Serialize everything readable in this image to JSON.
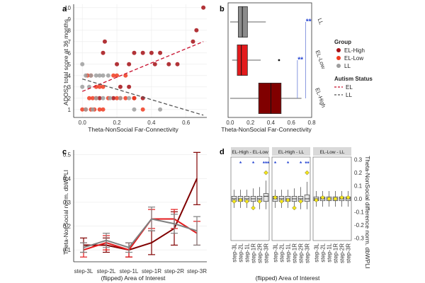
{
  "panels": {
    "a": {
      "label": "a",
      "chart_data": {
        "type": "scatter",
        "xlabel": "Theta-NonSocial Far-Connectivity",
        "ylabel": "ADOS2 total score at 36 months",
        "xlim": [
          -0.05,
          0.72
        ],
        "ylim": [
          0.3,
          10.3
        ],
        "xticks": [
          0.0,
          0.2,
          0.4,
          0.6
        ],
        "xtick_labels": [
          "0.0",
          "0.2",
          "0.4",
          "0.6"
        ],
        "yticks": [
          1,
          2,
          3,
          4,
          5,
          6,
          7,
          8,
          9,
          10
        ],
        "ytick_labels": [
          "1",
          "2",
          "3",
          "4",
          "5",
          "6",
          "7",
          "8",
          "9",
          "10"
        ],
        "series": [
          {
            "name": "EL-High",
            "color": "#a50f15",
            "points": [
              [
                0.7,
                10
              ],
              [
                0.66,
                8
              ],
              [
                0.64,
                7
              ],
              [
                0.45,
                6
              ],
              [
                0.4,
                6
              ],
              [
                0.35,
                6
              ],
              [
                0.3,
                6
              ],
              [
                0.55,
                5
              ],
              [
                0.5,
                5
              ],
              [
                0.42,
                5
              ],
              [
                0.13,
                7
              ],
              [
                0.12,
                6
              ],
              [
                0.2,
                5
              ],
              [
                0.27,
                5
              ],
              [
                0.22,
                3
              ],
              [
                0.27,
                3
              ],
              [
                0.18,
                2
              ],
              [
                0.35,
                2
              ],
              [
                0.3,
                2
              ],
              [
                0.1,
                2
              ]
            ]
          },
          {
            "name": "EL-Low",
            "color": "#f03b20",
            "points": [
              [
                0.03,
                4
              ],
              [
                0.05,
                4
              ],
              [
                0.08,
                3
              ],
              [
                0.1,
                3
              ],
              [
                0.12,
                3
              ],
              [
                0.18,
                4
              ],
              [
                0.2,
                4
              ],
              [
                0.25,
                4
              ],
              [
                0.15,
                2
              ],
              [
                0.2,
                2
              ],
              [
                0.22,
                2
              ],
              [
                0.25,
                2
              ],
              [
                0.3,
                2
              ],
              [
                0.0,
                1
              ],
              [
                0.02,
                1
              ],
              [
                0.05,
                1
              ],
              [
                0.07,
                1
              ],
              [
                0.1,
                1
              ],
              [
                0.12,
                1
              ],
              [
                0.35,
                1
              ],
              [
                0.04,
                2
              ],
              [
                0.06,
                2
              ],
              [
                0.08,
                2
              ]
            ]
          },
          {
            "name": "LL",
            "color": "#9e9e9e",
            "points": [
              [
                0.0,
                5
              ],
              [
                0.02,
                4
              ],
              [
                0.05,
                4
              ],
              [
                0.08,
                4
              ],
              [
                0.1,
                4
              ],
              [
                0.12,
                4
              ],
              [
                0.15,
                4
              ],
              [
                0.0,
                3
              ],
              [
                0.04,
                3
              ],
              [
                0.08,
                2
              ],
              [
                0.12,
                2
              ],
              [
                0.16,
                2
              ],
              [
                0.22,
                2
              ],
              [
                0.27,
                2
              ],
              [
                0.3,
                1
              ],
              [
                0.45,
                1
              ],
              [
                0.02,
                1
              ],
              [
                0.06,
                1
              ]
            ]
          }
        ],
        "trend_lines": [
          {
            "name": "EL",
            "color": "#c8102e",
            "x": [
              0.0,
              0.7
            ],
            "y": [
              2.6,
              7.0
            ]
          },
          {
            "name": "LL",
            "color": "#555555",
            "x": [
              0.0,
              0.7
            ],
            "y": [
              3.7,
              0.5
            ]
          }
        ]
      }
    },
    "b": {
      "label": "b",
      "chart_data": {
        "type": "box",
        "orientation": "horizontal",
        "xlabel": "Theta-NonSocial Far-Connectivity",
        "xlim": [
          -0.02,
          0.8
        ],
        "xticks": [
          0.0,
          0.2,
          0.4,
          0.6,
          0.8
        ],
        "xtick_labels": [
          "0.0",
          "0.2",
          "0.4",
          "0.6",
          "0.8"
        ],
        "groups": [
          {
            "name": "LL",
            "color": "#8c8c8c",
            "min": 0.0,
            "q1": 0.08,
            "median": 0.12,
            "q3": 0.17,
            "max": 0.35
          },
          {
            "name": "EL-Low",
            "color": "#e31a1c",
            "min": 0.02,
            "q1": 0.07,
            "median": 0.11,
            "q3": 0.17,
            "max": 0.3,
            "outliers": [
              0.48
            ]
          },
          {
            "name": "EL-High",
            "color": "#800000",
            "min": 0.0,
            "q1": 0.28,
            "median": 0.4,
            "q3": 0.5,
            "max": 0.7
          }
        ],
        "facet_labels": [
          "LL",
          "EL-Low",
          "EL-High"
        ],
        "significance": [
          {
            "between": [
              "LL",
              "EL-High"
            ],
            "label": "**"
          },
          {
            "between": [
              "EL-Low",
              "EL-High"
            ],
            "label": "**"
          }
        ]
      },
      "legend": {
        "group_title": "Group",
        "group_items": [
          {
            "name": "EL-High",
            "color": "#a50f15"
          },
          {
            "name": "EL-Low",
            "color": "#f03b20"
          },
          {
            "name": "LL",
            "color": "#9e9e9e"
          }
        ],
        "status_title": "Autism Status",
        "status_items": [
          {
            "name": "EL",
            "color": "#c8102e"
          },
          {
            "name": "LL",
            "color": "#555555"
          }
        ]
      }
    },
    "c": {
      "label": "c",
      "chart_data": {
        "type": "line",
        "xlabel": "(flipped) Area of Interest",
        "ylabel": "Theta-NonSocial norm. dbWPLI",
        "categories": [
          "step-3L",
          "step-2L",
          "step-1L",
          "step-1R",
          "step-2R",
          "step-3R"
        ],
        "ylim": [
          0.05,
          0.52
        ],
        "yticks": [
          0.1,
          0.2,
          0.3,
          0.4,
          0.5
        ],
        "ytick_labels": [
          "0.1",
          "0.2",
          "0.3",
          "0.4",
          "0.5"
        ],
        "series": [
          {
            "name": "EL-High",
            "color": "#800000",
            "values": [
              0.12,
              0.12,
              0.1,
              0.13,
              0.19,
              0.4
            ],
            "err": [
              0.03,
              0.03,
              0.03,
              0.05,
              0.07,
              0.11
            ]
          },
          {
            "name": "EL-Low",
            "color": "#e31a1c",
            "values": [
              0.1,
              0.13,
              0.1,
              0.23,
              0.23,
              0.17
            ],
            "err": [
              0.03,
              0.03,
              0.03,
              0.04,
              0.04,
              0.05
            ]
          },
          {
            "name": "LL",
            "color": "#808080",
            "values": [
              0.11,
              0.14,
              0.11,
              0.23,
              0.21,
              0.18
            ],
            "err": [
              0.02,
              0.03,
              0.02,
              0.05,
              0.04,
              0.06
            ]
          }
        ]
      }
    },
    "d": {
      "label": "d",
      "chart_data": {
        "type": "box",
        "orientation": "vertical",
        "xlabel": "(flipped) Area of Interest",
        "ylabel": "Theta-NonSocial difference norm. dbWPLI",
        "ylim": [
          -0.32,
          0.32
        ],
        "yticks": [
          -0.3,
          -0.2,
          -0.1,
          0.0,
          0.1,
          0.2,
          0.3
        ],
        "ytick_labels": [
          "-0.3",
          "-0.2",
          "-0.1",
          "0.0",
          "0.1",
          "0.2",
          "0.3"
        ],
        "categories": [
          "step-3L",
          "step-2L",
          "step-1L",
          "step-1R",
          "step-2R",
          "step-3R"
        ],
        "facets": [
          {
            "title": "EL-High - EL-Low",
            "medians": [
              0.0,
              0.0,
              0.0,
              0.0,
              0.0,
              0.02
            ],
            "q1": [
              -0.02,
              -0.02,
              -0.02,
              -0.02,
              -0.02,
              -0.02
            ],
            "q3": [
              0.02,
              0.02,
              0.02,
              0.02,
              0.02,
              0.04
            ],
            "min": [
              -0.07,
              -0.07,
              -0.07,
              -0.08,
              -0.08,
              -0.08
            ],
            "max": [
              0.07,
              0.07,
              0.07,
              0.08,
              0.09,
              0.14
            ],
            "means": [
              -0.02,
              -0.01,
              -0.02,
              -0.07,
              -0.02,
              0.2
            ],
            "stars": [
              "",
              "*",
              "",
              "*",
              "",
              "***"
            ]
          },
          {
            "title": "EL-High - LL",
            "medians": [
              0.0,
              0.0,
              0.0,
              0.0,
              0.0,
              0.0
            ],
            "q1": [
              -0.02,
              -0.02,
              -0.02,
              -0.02,
              -0.02,
              -0.02
            ],
            "q3": [
              0.02,
              0.02,
              0.02,
              0.02,
              0.02,
              0.03
            ],
            "min": [
              -0.07,
              -0.07,
              -0.07,
              -0.08,
              -0.08,
              -0.08
            ],
            "max": [
              0.07,
              0.07,
              0.07,
              0.08,
              0.09,
              0.13
            ],
            "means": [
              0.01,
              -0.02,
              -0.01,
              -0.07,
              -0.02,
              0.2
            ],
            "stars": [
              "*",
              "",
              "*",
              "",
              "*",
              "**"
            ]
          },
          {
            "title": "EL-Low - LL",
            "medians": [
              0.0,
              0.0,
              0.0,
              0.0,
              0.0,
              0.0
            ],
            "q1": [
              -0.015,
              -0.015,
              -0.015,
              -0.015,
              -0.015,
              -0.015
            ],
            "q3": [
              0.015,
              0.015,
              0.015,
              0.015,
              0.015,
              0.015
            ],
            "min": [
              -0.06,
              -0.06,
              -0.06,
              -0.06,
              -0.06,
              -0.06
            ],
            "max": [
              0.06,
              0.06,
              0.06,
              0.06,
              0.06,
              0.06
            ],
            "means": [
              -0.01,
              0.01,
              0.0,
              0.0,
              0.01,
              0.01
            ],
            "stars": [
              "",
              "",
              "",
              "",
              "",
              ""
            ]
          }
        ]
      }
    }
  }
}
